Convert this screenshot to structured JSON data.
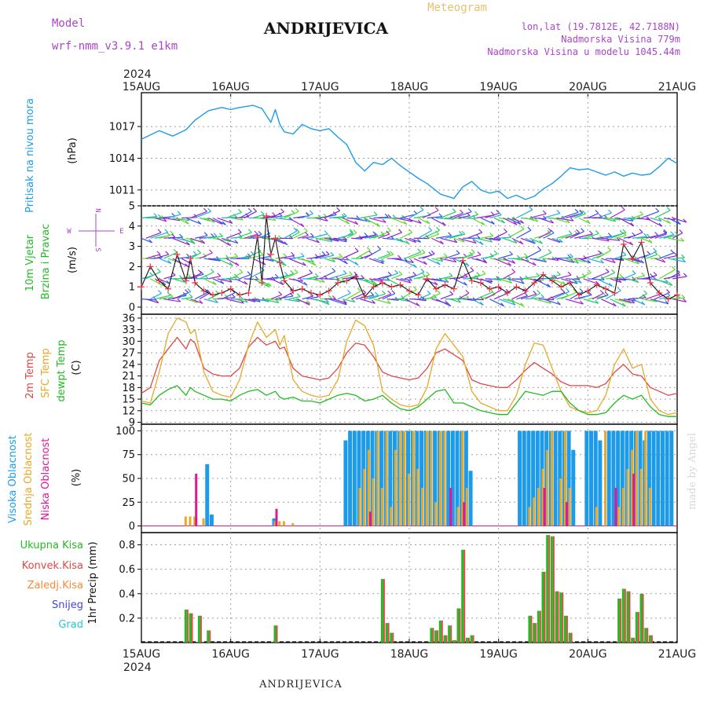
{
  "header": {
    "model_label": "Model",
    "model_name": "wrf-nmm_v3.9.1  e1km",
    "station": "ANDRIJEVICA",
    "meteogram_label": "Meteogram",
    "lonlat": "lon,lat (19.7812E, 42.7188N)",
    "altitude": "Nadmorska Visina 779m",
    "model_altitude": "Nadmorska Visina u modelu 1045.44m",
    "footer_station": "ANDRIJEVICA",
    "watermark": "made by Angel"
  },
  "colors": {
    "pressure": "#1e9be8",
    "wind_label": "#22bb22",
    "compass": "#aa44cc",
    "temp": "#e04848",
    "sfc_temp": "#e8a828",
    "dewpt": "#22bb22",
    "cloud_high": "#1e9be8",
    "cloud_mid": "#e8a828",
    "cloud_low": "#e01898",
    "precip_total": "#22bb22",
    "precip_conv": "#e04848",
    "precip_frozen": "#ff8833",
    "snow": "#4444ee",
    "hail": "#22cccc",
    "grid": "#a0a0a0"
  },
  "time_axis": {
    "year": "2024",
    "ticks": [
      "15AUG",
      "16AUG",
      "17AUG",
      "18AUG",
      "19AUG",
      "20AUG",
      "21AUG"
    ]
  },
  "panels": {
    "pressure": {
      "label": "Pritisak na nivou mora",
      "unit": "(hPa)",
      "ticks": [
        "1017",
        "1014",
        "1011"
      ]
    },
    "wind": {
      "label1": "10m Vjetar",
      "label2": "Brzina i Pravac",
      "unit": "(m/s)",
      "compass_n": "N",
      "compass_w": "W",
      "compass_e": "E",
      "compass_s": "S",
      "ticks": [
        "0",
        "1",
        "2",
        "3",
        "4",
        "5"
      ]
    },
    "temperature": {
      "label_temp": "2m Temp",
      "label_sfc": "SFC Temp",
      "label_dewpt": "dewpt Temp",
      "unit": "(C)",
      "ticks": [
        "9",
        "12",
        "15",
        "18",
        "21",
        "24",
        "27",
        "30",
        "33",
        "36"
      ]
    },
    "clouds": {
      "label_high": "Visoka Oblacnost",
      "label_mid": "Srednja Oblacnost",
      "label_low": "Niska Oblacnost",
      "unit": "(%)",
      "ticks": [
        "0",
        "25",
        "50",
        "75",
        "100"
      ]
    },
    "precip": {
      "label_total": "Ukupna Kisa",
      "label_conv": "Konvek.Kisa",
      "label_frozen": "Zaledj.Kisa",
      "label_snow": "Snijeg",
      "label_hail": "Grad",
      "unit": "1hr Precip (mm)",
      "ticks": [
        "0.2",
        "0.4",
        "0.6",
        "0.8"
      ]
    }
  },
  "chart_data": [
    {
      "type": "line",
      "panel": "pressure",
      "ylabel": "Pritisak na nivou mora (hPa)",
      "ylim": [
        1009.5,
        1020.2
      ],
      "x": [
        0,
        0.1,
        0.2,
        0.35,
        0.5,
        0.6,
        0.75,
        0.9,
        1.0,
        1.1,
        1.25,
        1.35,
        1.45,
        1.5,
        1.55,
        1.6,
        1.7,
        1.8,
        1.9,
        2.0,
        2.1,
        2.2,
        2.3,
        2.4,
        2.5,
        2.6,
        2.7,
        2.8,
        2.9,
        3.0,
        3.1,
        3.2,
        3.35,
        3.5,
        3.6,
        3.7,
        3.8,
        3.9,
        4.0,
        4.1,
        4.2,
        4.3,
        4.4,
        4.5,
        4.6,
        4.7,
        4.8,
        4.9,
        5.0,
        5.1,
        5.2,
        5.3,
        5.4,
        5.5,
        5.6,
        5.7,
        5.8,
        5.9,
        6.0
      ],
      "y": [
        1015.8,
        1016.2,
        1016.6,
        1016.1,
        1016.7,
        1017.6,
        1018.5,
        1018.8,
        1018.6,
        1018.8,
        1019.0,
        1018.7,
        1017.4,
        1018.6,
        1017.2,
        1016.5,
        1016.3,
        1017.2,
        1016.8,
        1016.6,
        1016.8,
        1016.0,
        1015.3,
        1013.6,
        1012.8,
        1013.6,
        1013.4,
        1014.0,
        1013.3,
        1012.7,
        1012.1,
        1011.6,
        1010.6,
        1010.2,
        1011.3,
        1011.8,
        1011.0,
        1010.7,
        1010.9,
        1010.2,
        1010.5,
        1010.1,
        1010.4,
        1011.1,
        1011.6,
        1012.3,
        1013.1,
        1012.9,
        1013.0,
        1012.7,
        1012.4,
        1012.7,
        1012.3,
        1012.6,
        1012.4,
        1012.5,
        1013.2,
        1014.0,
        1013.5
      ]
    },
    {
      "type": "line",
      "panel": "wind",
      "ylabel": "10m Vjetar Brzina i Pravac (m/s)",
      "ylim": [
        0,
        5
      ],
      "x": [
        0,
        0.1,
        0.2,
        0.3,
        0.4,
        0.5,
        0.55,
        0.6,
        0.7,
        0.8,
        0.9,
        1.0,
        1.1,
        1.2,
        1.3,
        1.35,
        1.4,
        1.45,
        1.5,
        1.55,
        1.6,
        1.7,
        1.8,
        1.9,
        2.0,
        2.1,
        2.2,
        2.3,
        2.4,
        2.5,
        2.6,
        2.7,
        2.8,
        2.9,
        3.0,
        3.1,
        3.2,
        3.3,
        3.4,
        3.5,
        3.6,
        3.7,
        3.8,
        3.9,
        4.0,
        4.1,
        4.2,
        4.3,
        4.4,
        4.5,
        4.6,
        4.7,
        4.8,
        4.9,
        5.0,
        5.1,
        5.2,
        5.3,
        5.4,
        5.5,
        5.6,
        5.7,
        5.8,
        5.9,
        6.0
      ],
      "y": [
        1.0,
        2.0,
        1.3,
        0.9,
        2.6,
        1.3,
        2.4,
        1.2,
        0.8,
        0.6,
        0.7,
        0.9,
        0.6,
        0.7,
        3.5,
        1.2,
        4.5,
        2.6,
        3.4,
        2.2,
        1.3,
        0.8,
        0.9,
        0.7,
        0.6,
        0.8,
        1.2,
        1.3,
        1.5,
        0.5,
        1.0,
        1.2,
        1.0,
        1.1,
        0.8,
        0.6,
        1.4,
        0.9,
        1.1,
        0.9,
        2.3,
        1.3,
        1.2,
        0.9,
        1.0,
        0.7,
        1.0,
        0.8,
        1.2,
        1.6,
        1.3,
        1.0,
        1.2,
        0.6,
        0.8,
        1.1,
        0.9,
        0.7,
        3.1,
        2.4,
        3.2,
        1.2,
        0.7,
        0.4,
        0.6
      ]
    },
    {
      "type": "line",
      "panel": "temperature",
      "ylabel": "(C)",
      "ylim": [
        8.5,
        37
      ],
      "x": [
        0,
        0.1,
        0.2,
        0.3,
        0.4,
        0.5,
        0.55,
        0.6,
        0.7,
        0.8,
        0.9,
        1.0,
        1.1,
        1.2,
        1.3,
        1.4,
        1.5,
        1.55,
        1.6,
        1.7,
        1.8,
        1.9,
        2.0,
        2.1,
        2.2,
        2.3,
        2.4,
        2.5,
        2.6,
        2.7,
        2.8,
        2.9,
        3.0,
        3.1,
        3.2,
        3.3,
        3.4,
        3.5,
        3.6,
        3.7,
        3.8,
        3.9,
        4.0,
        4.1,
        4.2,
        4.3,
        4.4,
        4.5,
        4.6,
        4.7,
        4.8,
        4.9,
        5.0,
        5.1,
        5.2,
        5.3,
        5.4,
        5.5,
        5.6,
        5.7,
        5.8,
        5.9,
        6.0
      ],
      "series": [
        {
          "name": "2m Temp",
          "values": [
            16.5,
            18.0,
            25.0,
            28.0,
            31.0,
            28.0,
            30.5,
            29.5,
            23.0,
            21.5,
            21.0,
            21.0,
            23.0,
            28.5,
            31.0,
            29.0,
            30.0,
            28.0,
            28.5,
            23.0,
            21.0,
            20.5,
            20.0,
            20.5,
            23.0,
            27.0,
            29.5,
            29.0,
            26.0,
            22.0,
            21.0,
            20.5,
            20.0,
            20.5,
            23.0,
            27.0,
            28.0,
            26.5,
            25.0,
            20.0,
            19.0,
            18.5,
            18.0,
            18.0,
            20.0,
            22.5,
            24.5,
            23.0,
            21.5,
            19.5,
            18.5,
            18.5,
            18.5,
            18.0,
            19.0,
            22.0,
            24.0,
            21.5,
            21.0,
            18.0,
            17.0,
            16.0,
            16.5
          ]
        },
        {
          "name": "SFC Temp",
          "values": [
            14.5,
            14.0,
            22.0,
            32.0,
            36.0,
            35.0,
            32.0,
            33.0,
            22.0,
            17.0,
            16.0,
            15.5,
            20.0,
            29.0,
            35.0,
            31.0,
            33.0,
            29.0,
            31.5,
            20.0,
            17.0,
            16.0,
            15.5,
            16.0,
            20.0,
            30.0,
            35.5,
            34.0,
            29.0,
            17.0,
            15.0,
            13.5,
            13.0,
            13.5,
            18.0,
            28.0,
            32.0,
            29.0,
            26.0,
            17.0,
            14.0,
            13.0,
            12.0,
            12.0,
            16.0,
            24.0,
            29.5,
            29.0,
            23.0,
            17.0,
            13.0,
            12.0,
            11.5,
            12.0,
            16.0,
            24.0,
            28.0,
            23.0,
            24.0,
            15.0,
            12.0,
            11.0,
            11.5
          ]
        },
        {
          "name": "dewpt Temp",
          "values": [
            14.0,
            13.5,
            16.0,
            17.5,
            18.5,
            16.0,
            18.0,
            17.0,
            16.0,
            15.0,
            15.0,
            14.5,
            16.0,
            17.0,
            17.5,
            16.0,
            17.0,
            15.5,
            15.0,
            15.5,
            14.5,
            14.5,
            14.0,
            15.0,
            16.0,
            16.5,
            16.0,
            14.5,
            15.0,
            16.0,
            14.0,
            12.5,
            12.0,
            13.0,
            15.0,
            17.0,
            17.5,
            14.0,
            14.0,
            13.0,
            12.0,
            11.5,
            11.0,
            11.0,
            14.0,
            17.0,
            16.5,
            16.0,
            17.0,
            17.0,
            14.0,
            12.0,
            11.0,
            11.0,
            11.5,
            14.0,
            16.0,
            15.0,
            16.0,
            13.0,
            11.0,
            10.5,
            10.5
          ]
        }
      ]
    },
    {
      "type": "bar",
      "panel": "clouds",
      "ylabel": "(%)",
      "ylim": [
        0,
        100
      ],
      "x": [
        0.5,
        0.55,
        0.6,
        0.65,
        0.7,
        0.75,
        0.8,
        1.5,
        1.55,
        1.6,
        1.7,
        2.3,
        2.35,
        2.4,
        2.45,
        2.5,
        2.55,
        2.6,
        2.65,
        2.7,
        2.75,
        2.8,
        2.85,
        2.9,
        2.95,
        3.0,
        3.05,
        3.1,
        3.15,
        3.2,
        3.25,
        3.3,
        3.35,
        3.4,
        3.45,
        3.5,
        3.55,
        3.6,
        3.65,
        3.7,
        4.25,
        4.3,
        4.35,
        4.4,
        4.45,
        4.5,
        4.55,
        4.6,
        4.65,
        4.7,
        4.75,
        4.8,
        4.85,
        5.0,
        5.05,
        5.1,
        5.15,
        5.2,
        5.25,
        5.3,
        5.35,
        5.4,
        5.45,
        5.5,
        5.55,
        5.6,
        5.65,
        5.7,
        5.75,
        5.8,
        5.85,
        5.9,
        5.95
      ],
      "series": [
        {
          "name": "Visoka Oblacnost",
          "values": [
            0,
            0,
            0,
            0,
            0,
            65,
            12,
            8,
            0,
            0,
            0,
            90,
            100,
            100,
            100,
            100,
            100,
            100,
            100,
            100,
            100,
            100,
            100,
            100,
            100,
            100,
            100,
            100,
            100,
            100,
            100,
            100,
            100,
            100,
            100,
            100,
            100,
            100,
            100,
            58,
            100,
            100,
            100,
            100,
            100,
            100,
            100,
            100,
            100,
            100,
            100,
            100,
            80,
            100,
            100,
            100,
            90,
            0,
            100,
            100,
            100,
            100,
            100,
            100,
            100,
            100,
            90,
            100,
            100,
            100,
            100,
            100,
            100
          ]
        },
        {
          "name": "Srednja Oblacnost",
          "values": [
            10,
            10,
            10,
            0,
            8,
            0,
            0,
            5,
            5,
            5,
            3,
            0,
            0,
            0,
            40,
            60,
            80,
            50,
            100,
            40,
            100,
            20,
            80,
            100,
            100,
            55,
            100,
            60,
            40,
            100,
            100,
            25,
            100,
            100,
            0,
            0,
            20,
            100,
            40,
            0,
            0,
            0,
            20,
            30,
            40,
            60,
            80,
            100,
            0,
            50,
            100,
            40,
            0,
            0,
            0,
            20,
            0,
            100,
            0,
            0,
            20,
            40,
            60,
            80,
            100,
            60,
            100,
            40,
            0,
            0,
            0,
            0,
            0
          ]
        },
        {
          "name": "Niska Oblacnost",
          "values": [
            0,
            0,
            55,
            0,
            0,
            0,
            0,
            18,
            0,
            0,
            0,
            0,
            0,
            0,
            0,
            0,
            15,
            0,
            0,
            0,
            0,
            0,
            0,
            0,
            0,
            0,
            0,
            0,
            0,
            0,
            0,
            0,
            0,
            0,
            40,
            0,
            0,
            25,
            0,
            0,
            0,
            0,
            0,
            0,
            0,
            40,
            0,
            0,
            0,
            0,
            25,
            0,
            0,
            0,
            0,
            0,
            0,
            0,
            0,
            40,
            0,
            0,
            0,
            55,
            0,
            0,
            0,
            0,
            0,
            0,
            0,
            0,
            0
          ]
        }
      ]
    },
    {
      "type": "bar",
      "panel": "precip",
      "ylabel": "1hr Precip (mm)",
      "ylim": [
        0,
        0.9
      ],
      "x": [
        0.5,
        0.55,
        0.65,
        0.75,
        1.5,
        2.7,
        2.75,
        2.8,
        3.25,
        3.3,
        3.35,
        3.4,
        3.45,
        3.5,
        3.55,
        3.6,
        3.65,
        3.7,
        4.35,
        4.4,
        4.45,
        4.5,
        4.55,
        4.6,
        4.65,
        4.7,
        4.75,
        4.8,
        5.35,
        5.4,
        5.45,
        5.5,
        5.55,
        5.6,
        5.65,
        5.7
      ],
      "series": [
        {
          "name": "Ukupna Kisa",
          "values": [
            0.27,
            0.24,
            0.22,
            0.1,
            0.14,
            0.52,
            0.16,
            0.08,
            0.12,
            0.1,
            0.18,
            0.06,
            0.14,
            0.02,
            0.28,
            0.76,
            0.04,
            0.06,
            0.22,
            0.16,
            0.26,
            0.58,
            0.88,
            0.87,
            0.42,
            0.41,
            0.22,
            0.08,
            0.36,
            0.44,
            0.42,
            0.04,
            0.25,
            0.4,
            0.12,
            0.06
          ]
        },
        {
          "name": "Konvek.Kisa",
          "values": [
            0.27,
            0.24,
            0.22,
            0.1,
            0.14,
            0.52,
            0.16,
            0.08,
            0.12,
            0.1,
            0.18,
            0.06,
            0.14,
            0.02,
            0.28,
            0.76,
            0.04,
            0.06,
            0.22,
            0.16,
            0.26,
            0.58,
            0.88,
            0.87,
            0.42,
            0.41,
            0.22,
            0.08,
            0.36,
            0.44,
            0.42,
            0.04,
            0.25,
            0.4,
            0.12,
            0.06
          ]
        }
      ]
    }
  ]
}
